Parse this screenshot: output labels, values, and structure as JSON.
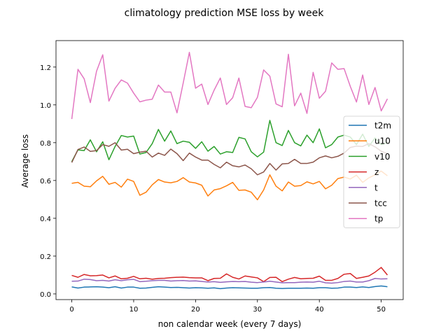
{
  "chart_data": {
    "type": "line",
    "title": "climatology prediction MSE loss by week",
    "xlabel": "non calendar week (every 7 days)",
    "ylabel": "Average loss",
    "xlim": [
      -2.55,
      53.55
    ],
    "ylim": [
      -0.03,
      1.34
    ],
    "xticks": [
      0,
      10,
      20,
      30,
      40,
      50
    ],
    "yticks": [
      0.0,
      0.2,
      0.4,
      0.6,
      0.8,
      1.0,
      1.2
    ],
    "ytick_labels": [
      "0.0",
      "0.2",
      "0.4",
      "0.6",
      "0.8",
      "1.0",
      "1.2"
    ],
    "grid": false,
    "legend_position": "center-right",
    "x": [
      0,
      1,
      2,
      3,
      4,
      5,
      6,
      7,
      8,
      9,
      10,
      11,
      12,
      13,
      14,
      15,
      16,
      17,
      18,
      19,
      20,
      21,
      22,
      23,
      24,
      25,
      26,
      27,
      28,
      29,
      30,
      31,
      32,
      33,
      34,
      35,
      36,
      37,
      38,
      39,
      40,
      41,
      42,
      43,
      44,
      45,
      46,
      47,
      48,
      49,
      50,
      51
    ],
    "series": [
      {
        "name": "t2m",
        "color": "#1f77b4",
        "values": [
          0.037,
          0.031,
          0.036,
          0.037,
          0.038,
          0.036,
          0.033,
          0.038,
          0.031,
          0.036,
          0.036,
          0.03,
          0.031,
          0.035,
          0.038,
          0.036,
          0.034,
          0.035,
          0.033,
          0.031,
          0.033,
          0.032,
          0.03,
          0.032,
          0.028,
          0.031,
          0.033,
          0.032,
          0.031,
          0.03,
          0.03,
          0.033,
          0.034,
          0.03,
          0.029,
          0.03,
          0.03,
          0.03,
          0.031,
          0.03,
          0.033,
          0.033,
          0.03,
          0.031,
          0.036,
          0.036,
          0.034,
          0.037,
          0.034,
          0.039,
          0.042,
          0.038
        ]
      },
      {
        "name": "u10",
        "color": "#ff7f0e",
        "values": [
          0.585,
          0.59,
          0.57,
          0.567,
          0.598,
          0.622,
          0.58,
          0.59,
          0.565,
          0.607,
          0.595,
          0.522,
          0.538,
          0.577,
          0.605,
          0.592,
          0.588,
          0.595,
          0.615,
          0.592,
          0.587,
          0.575,
          0.518,
          0.55,
          0.557,
          0.572,
          0.59,
          0.548,
          0.55,
          0.538,
          0.498,
          0.55,
          0.63,
          0.57,
          0.545,
          0.592,
          0.57,
          0.573,
          0.593,
          0.582,
          0.595,
          0.556,
          0.575,
          0.61,
          0.618,
          0.608,
          0.628,
          0.59,
          0.614,
          0.63,
          0.65,
          0.625
        ]
      },
      {
        "name": "v10",
        "color": "#2ca02c",
        "values": [
          0.7,
          0.762,
          0.758,
          0.815,
          0.752,
          0.805,
          0.71,
          0.78,
          0.838,
          0.83,
          0.835,
          0.74,
          0.748,
          0.795,
          0.87,
          0.808,
          0.862,
          0.795,
          0.808,
          0.802,
          0.77,
          0.805,
          0.755,
          0.78,
          0.74,
          0.752,
          0.748,
          0.828,
          0.82,
          0.752,
          0.725,
          0.75,
          0.918,
          0.8,
          0.785,
          0.865,
          0.8,
          0.783,
          0.84,
          0.8,
          0.873,
          0.773,
          0.79,
          0.83,
          0.84,
          0.83,
          0.79,
          0.845,
          0.78,
          0.825,
          0.79,
          0.8
        ]
      },
      {
        "name": "z",
        "color": "#d62728",
        "values": [
          0.098,
          0.088,
          0.103,
          0.096,
          0.097,
          0.1,
          0.085,
          0.095,
          0.08,
          0.083,
          0.093,
          0.08,
          0.083,
          0.078,
          0.082,
          0.083,
          0.086,
          0.088,
          0.089,
          0.086,
          0.085,
          0.085,
          0.07,
          0.082,
          0.083,
          0.106,
          0.088,
          0.079,
          0.095,
          0.09,
          0.085,
          0.065,
          0.087,
          0.088,
          0.065,
          0.078,
          0.087,
          0.08,
          0.082,
          0.083,
          0.094,
          0.072,
          0.072,
          0.082,
          0.104,
          0.108,
          0.082,
          0.088,
          0.095,
          0.115,
          0.14,
          0.1
        ]
      },
      {
        "name": "t",
        "color": "#9467bd",
        "values": [
          0.067,
          0.068,
          0.078,
          0.076,
          0.07,
          0.072,
          0.068,
          0.075,
          0.07,
          0.075,
          0.077,
          0.065,
          0.067,
          0.07,
          0.072,
          0.072,
          0.068,
          0.07,
          0.071,
          0.068,
          0.069,
          0.066,
          0.063,
          0.065,
          0.061,
          0.064,
          0.066,
          0.065,
          0.066,
          0.062,
          0.06,
          0.063,
          0.067,
          0.063,
          0.059,
          0.06,
          0.06,
          0.062,
          0.063,
          0.062,
          0.067,
          0.059,
          0.057,
          0.06,
          0.066,
          0.068,
          0.063,
          0.063,
          0.07,
          0.082,
          0.079,
          0.08
        ]
      },
      {
        "name": "tcc",
        "color": "#8c564b",
        "values": [
          0.695,
          0.764,
          0.777,
          0.754,
          0.758,
          0.79,
          0.781,
          0.8,
          0.761,
          0.765,
          0.742,
          0.75,
          0.755,
          0.724,
          0.745,
          0.733,
          0.766,
          0.742,
          0.705,
          0.745,
          0.724,
          0.708,
          0.708,
          0.685,
          0.667,
          0.697,
          0.678,
          0.672,
          0.682,
          0.662,
          0.63,
          0.645,
          0.69,
          0.655,
          0.688,
          0.69,
          0.712,
          0.69,
          0.69,
          0.697,
          0.72,
          0.73,
          0.72,
          0.728,
          0.745,
          0.775,
          0.782,
          0.78,
          0.795,
          0.778,
          0.755,
          0.742
        ]
      },
      {
        "name": "tp",
        "color": "#e377c2",
        "values": [
          0.925,
          1.188,
          1.138,
          1.012,
          1.178,
          1.265,
          1.02,
          1.088,
          1.132,
          1.115,
          1.062,
          1.016,
          1.025,
          1.03,
          1.105,
          1.068,
          1.068,
          0.958,
          1.115,
          1.278,
          1.088,
          1.11,
          1.002,
          1.078,
          1.142,
          1.002,
          1.038,
          1.142,
          0.992,
          0.985,
          1.04,
          1.185,
          1.152,
          1.005,
          0.99,
          1.268,
          0.995,
          1.062,
          0.955,
          1.172,
          1.035,
          1.072,
          1.222,
          1.188,
          1.192,
          1.098,
          1.015,
          1.158,
          1.002,
          1.092,
          0.968,
          1.032
        ]
      }
    ]
  }
}
